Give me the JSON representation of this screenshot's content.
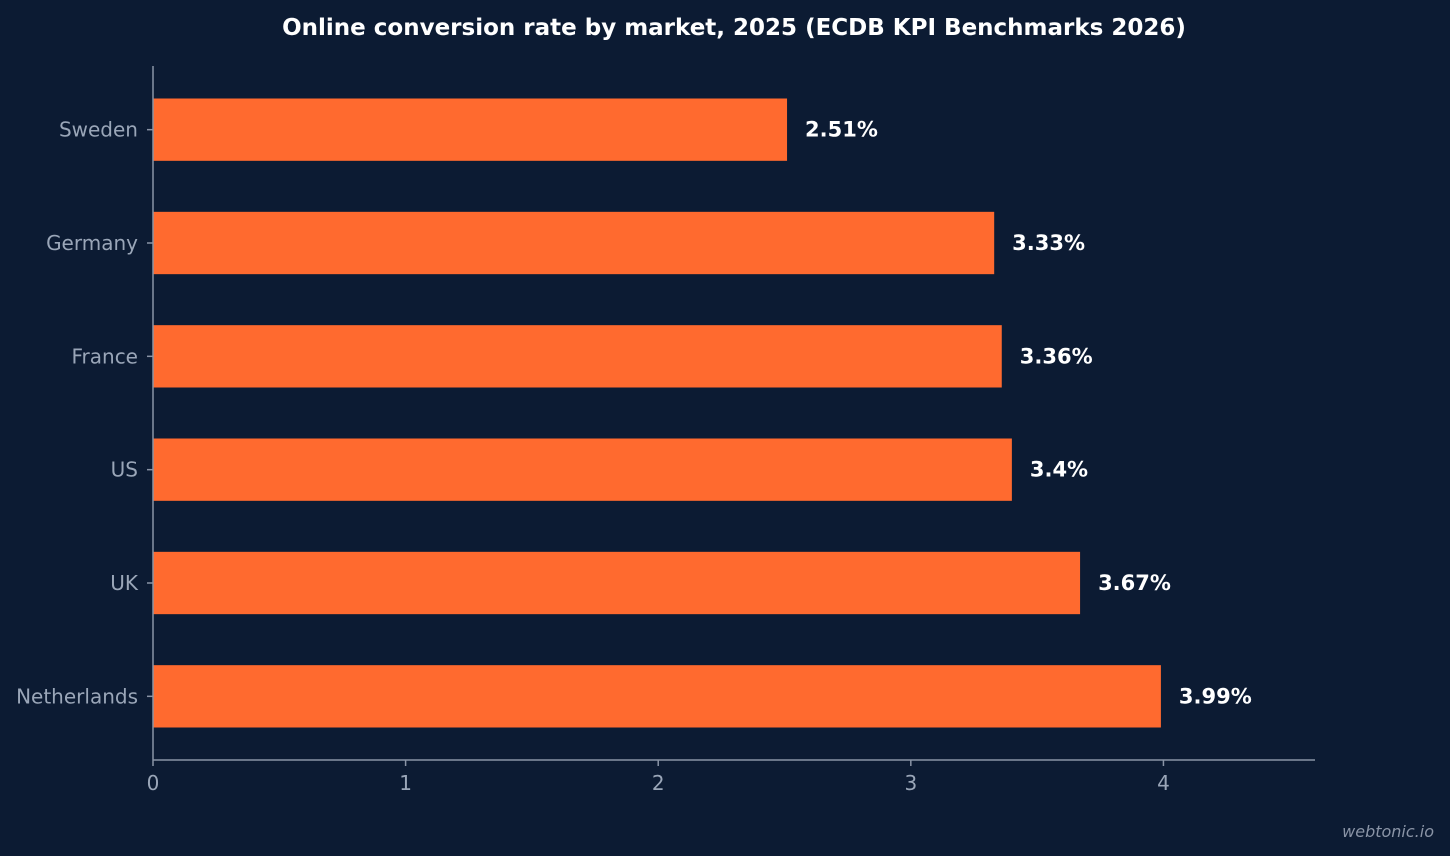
{
  "chart_data": {
    "type": "bar",
    "orientation": "horizontal",
    "title": "Online conversion rate by market, 2025 (ECDB KPI Benchmarks 2026)",
    "xlabel": "",
    "ylabel": "",
    "categories": [
      "Sweden",
      "Germany",
      "France",
      "US",
      "UK",
      "Netherlands"
    ],
    "values": [
      2.51,
      3.33,
      3.36,
      3.4,
      3.67,
      3.99
    ],
    "value_labels": [
      "2.51%",
      "3.33%",
      "3.36%",
      "3.4%",
      "3.67%",
      "3.99%"
    ],
    "xlim": [
      0,
      4.6
    ],
    "xticks": [
      0,
      1,
      2,
      3,
      4
    ],
    "xtick_labels": [
      "0",
      "1",
      "2",
      "3",
      "4"
    ],
    "grid": false,
    "legend": "none",
    "bar_color": "#ff6a2f",
    "background_color": "#0c1b33",
    "text_color": "#ffffff",
    "axis_color": "#8a94a6"
  },
  "watermark": "webtonic.io"
}
